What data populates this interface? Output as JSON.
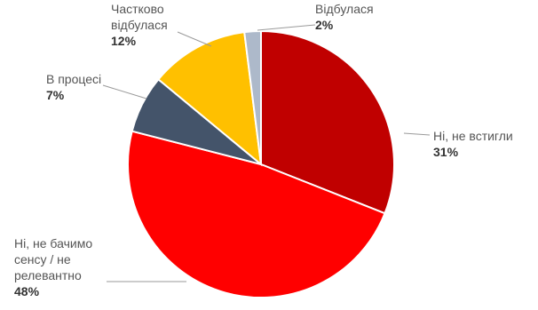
{
  "chart_data": {
    "type": "pie",
    "title": "",
    "slices": [
      {
        "name": "Ні, не встигли",
        "value": 31,
        "value_label": "31%",
        "color": "#c00000"
      },
      {
        "name": "Ні, не бачимо сенсу / не релевантно",
        "value": 48,
        "value_label": "48%",
        "color": "#ff0000"
      },
      {
        "name": "В процесі",
        "value": 7,
        "value_label": "7%",
        "color": "#44546a"
      },
      {
        "name": "Частково відбулася",
        "value": 12,
        "value_label": "12%",
        "color": "#ffc000"
      },
      {
        "name": "Відбулася",
        "value": 2,
        "value_label": "2%",
        "color": "#adb9ca"
      }
    ],
    "start_angle_deg": 0,
    "direction": "clockwise",
    "legend": "none",
    "labels": [
      {
        "lines": [
          "Ні, не встигли"
        ],
        "value_label": "31%"
      },
      {
        "lines": [
          "Ні, не бачимо",
          "сенсу / не",
          "релевантно"
        ],
        "value_label": "48%"
      },
      {
        "lines": [
          "В процесі"
        ],
        "value_label": "7%"
      },
      {
        "lines": [
          "Частково",
          "відбулася"
        ],
        "value_label": "12%"
      },
      {
        "lines": [
          "Відбулася"
        ],
        "value_label": "2%"
      }
    ]
  }
}
